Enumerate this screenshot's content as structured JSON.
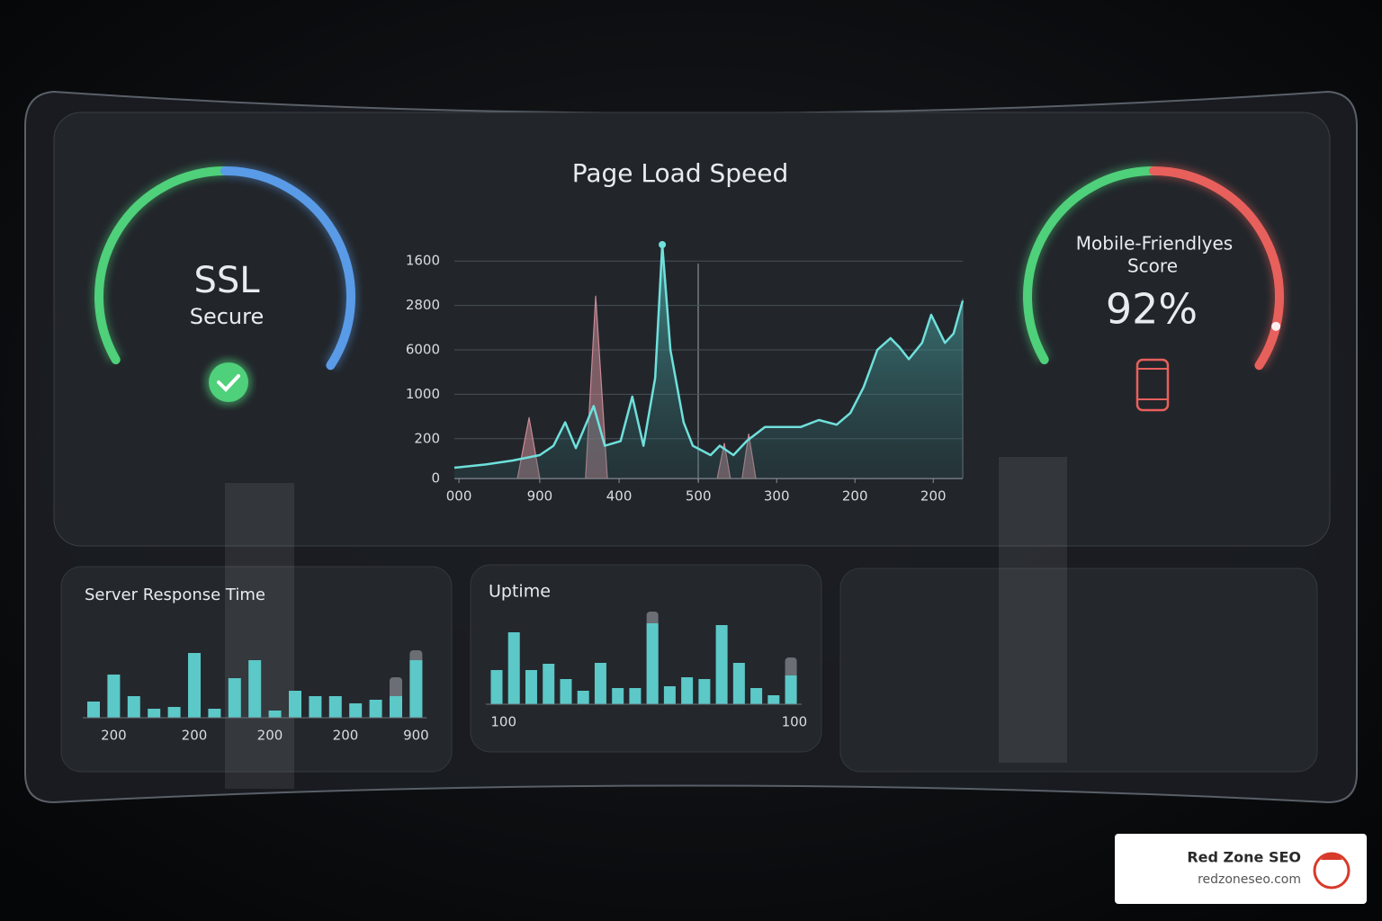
{
  "chart_data": [
    {
      "type": "gauge",
      "title": "SSL",
      "subtitle": "Secure",
      "colors": [
        "#4fd07a",
        "#5a9be8"
      ]
    },
    {
      "type": "area",
      "title": "Page Load Speed",
      "xlim": [
        0,
        100
      ],
      "ylim": [
        0,
        100
      ],
      "xticks": [
        {
          "value": 0.9,
          "label": "000"
        },
        {
          "value": 16.8,
          "label": "900"
        },
        {
          "value": 32.4,
          "label": "400"
        },
        {
          "value": 48,
          "label": "500"
        },
        {
          "value": 63.4,
          "label": "300"
        },
        {
          "value": 78.8,
          "label": "200"
        },
        {
          "value": 94.2,
          "label": "200"
        }
      ],
      "yticks": [
        0,
        {
          "value": 17,
          "label": "200"
        },
        {
          "value": 36,
          "label": "1000"
        },
        {
          "value": 55,
          "label": "6000"
        },
        {
          "value": 74,
          "label": "2800"
        },
        {
          "value": 93,
          "label": "1600"
        }
      ],
      "grid": true,
      "series": [
        {
          "color": "#6fe0dc",
          "x": [
            0,
            6.2,
            11.5,
            16.8,
            19.5,
            21.8,
            23.9,
            27.4,
            29.6,
            32.7,
            35,
            37.2,
            39.5,
            40.9,
            42.5,
            45.1,
            46.9,
            50.4,
            52.2,
            54.9,
            57.5,
            61.1,
            64.6,
            68.1,
            71.7,
            75.2,
            77.9,
            80.5,
            83.2,
            85.8,
            87.6,
            89.4,
            92,
            93.8,
            96.5,
            98.2,
            100
          ],
          "values": [
            4.6,
            6,
            7.7,
            10,
            14,
            24,
            13,
            31,
            14,
            16,
            35,
            14,
            43,
            100,
            55,
            24,
            14,
            10,
            14,
            10,
            16,
            22,
            22,
            22,
            25,
            23,
            28,
            39,
            55,
            60,
            56,
            51,
            58,
            70,
            58,
            62,
            76
          ]
        },
        {
          "color": "#c98a96",
          "x": [
            12.4,
            14.7,
            16.8,
            17.5,
            25.8,
            27.8,
            30.1,
            31,
            51.7,
            53.1,
            54.3,
            55,
            56.6,
            57.9,
            59.3
          ],
          "values": [
            0,
            26,
            0,
            null,
            0,
            78,
            0,
            null,
            0,
            15,
            0,
            null,
            0,
            19,
            0
          ]
        }
      ]
    },
    {
      "type": "gauge",
      "title_lines": [
        "Mobile-Friendlyes",
        "Score"
      ],
      "value": 92,
      "value_label": "92%",
      "ylim": [
        0,
        100
      ],
      "colors": [
        "#4fd07a",
        "#e8605c"
      ]
    },
    {
      "type": "bar",
      "title": "Server Response Time",
      "color": "#5cc8c8",
      "ylim": [
        0,
        80
      ],
      "values": [
        18,
        48,
        24,
        10,
        12,
        72,
        10,
        44,
        64,
        8,
        30,
        24,
        24,
        16,
        20,
        24,
        64
      ],
      "ghost": {
        "color": "#6b6f75",
        "values": [
          null,
          null,
          null,
          null,
          null,
          null,
          null,
          null,
          null,
          null,
          null,
          null,
          null,
          null,
          null,
          45,
          75
        ]
      },
      "x_labels": [
        {
          "value": 1,
          "label": "200"
        },
        {
          "value": 5,
          "label": "200"
        },
        {
          "value": 8.75,
          "label": "200"
        },
        {
          "value": 12.5,
          "label": "200"
        },
        {
          "value": 16,
          "label": "900"
        }
      ]
    },
    {
      "type": "bar",
      "title": "Uptime",
      "color": "#5cc8c8",
      "ylim": [
        0,
        100
      ],
      "values": [
        38,
        80,
        38,
        45,
        28,
        15,
        46,
        18,
        18,
        90,
        20,
        30,
        28,
        88,
        46,
        18,
        10,
        32
      ],
      "ghost": {
        "color": "#6b6f75",
        "values": [
          null,
          null,
          null,
          null,
          null,
          null,
          null,
          null,
          null,
          103,
          null,
          null,
          null,
          null,
          null,
          null,
          null,
          52
        ]
      },
      "x_labels": [
        {
          "value": 0.4,
          "label": "100"
        },
        {
          "value": 17.2,
          "label": "100"
        }
      ]
    }
  ],
  "brand": {
    "name": "Red Zone SEO",
    "url": "redzoneseo.com"
  }
}
